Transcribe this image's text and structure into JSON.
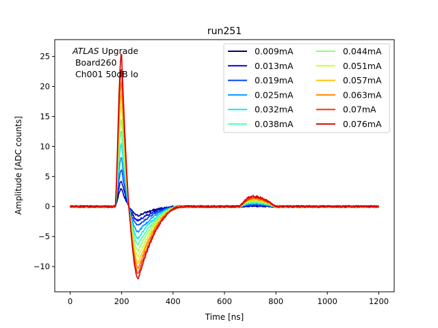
{
  "chart_data": {
    "type": "line",
    "title": "run251",
    "xlabel": "Time [ns]",
    "ylabel": "Amplitude [ADC counts]",
    "xlim": [
      -60,
      1260
    ],
    "ylim": [
      -14.2,
      27.8
    ],
    "xticks": [
      0,
      200,
      400,
      600,
      800,
      1000,
      1200
    ],
    "xtick_labels": [
      "0",
      "200",
      "400",
      "600",
      "800",
      "1000",
      "1200"
    ],
    "yticks": [
      -10,
      -5,
      0,
      5,
      10,
      15,
      20,
      25
    ],
    "ytick_labels": [
      "−10",
      "−5",
      "0",
      "5",
      "10",
      "15",
      "20",
      "25"
    ],
    "grid": false,
    "legend_placement": "top-right",
    "legend_columns": 2,
    "annotation": {
      "italic": "ATLAS",
      "line1_rest": " Upgrade",
      "line2": " Board260",
      "line3": " Ch001 50dB lo"
    },
    "pulse_shape": {
      "t0": 175,
      "t_peak": 200,
      "t_zero_cross": 228,
      "t_undershoot_min": 265,
      "t_recover": 400,
      "t_bump_start": 660,
      "t_bump_peak": 710,
      "t_bump_end": 800,
      "t_end": 1200
    },
    "series": [
      {
        "name": "0.009mA",
        "color": "#00007f",
        "peak": 3.0,
        "undershoot": -1.5,
        "bump": 0.1
      },
      {
        "name": "0.013mA",
        "color": "#0000e0",
        "peak": 4.3,
        "undershoot": -2.3,
        "bump": 0.15
      },
      {
        "name": "0.019mA",
        "color": "#0040ff",
        "peak": 6.2,
        "undershoot": -3.2,
        "bump": 0.3
      },
      {
        "name": "0.025mA",
        "color": "#0096ff",
        "peak": 8.2,
        "undershoot": -4.2,
        "bump": 0.45
      },
      {
        "name": "0.032mA",
        "color": "#12e5e5",
        "peak": 10.4,
        "undershoot": -5.3,
        "bump": 0.6
      },
      {
        "name": "0.038mA",
        "color": "#4dffaa",
        "peak": 12.5,
        "undershoot": -6.3,
        "bump": 0.75
      },
      {
        "name": "0.044mA",
        "color": "#8cff6a",
        "peak": 14.5,
        "undershoot": -7.3,
        "bump": 0.9
      },
      {
        "name": "0.051mA",
        "color": "#c8ff2e",
        "peak": 16.8,
        "undershoot": -8.4,
        "bump": 1.05
      },
      {
        "name": "0.057mA",
        "color": "#ffc400",
        "peak": 18.8,
        "undershoot": -9.4,
        "bump": 1.2
      },
      {
        "name": "0.063mA",
        "color": "#ff8500",
        "peak": 20.8,
        "undershoot": -10.3,
        "bump": 1.35
      },
      {
        "name": "0.07mA",
        "color": "#ff3000",
        "peak": 23.0,
        "undershoot": -11.2,
        "bump": 1.5
      },
      {
        "name": "0.076mA",
        "color": "#d10000",
        "peak": 25.5,
        "undershoot": -12.0,
        "bump": 1.7
      }
    ]
  }
}
